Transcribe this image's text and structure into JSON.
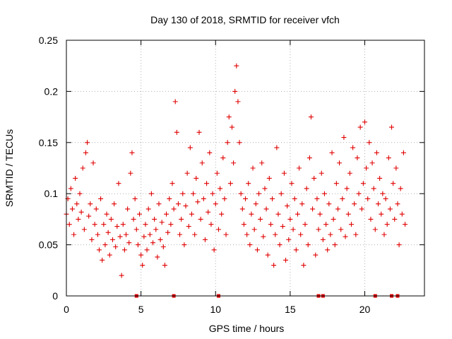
{
  "chart_data": {
    "type": "scatter",
    "title": "Day 130 of 2018, SRMTID for receiver vfch",
    "xlabel": "GPS time / hours",
    "ylabel": "SRMTID / TECUs",
    "xlim": [
      0,
      24
    ],
    "ylim": [
      0,
      0.25
    ],
    "xticks": [
      0,
      5,
      10,
      15,
      20
    ],
    "yticks": [
      0,
      0.05,
      0.1,
      0.15,
      0.2,
      0.25
    ],
    "xtick_labels": [
      "0",
      "5",
      "10",
      "15",
      "20"
    ],
    "ytick_labels": [
      "0",
      "0.05",
      "0.1",
      "0.15",
      "0.2",
      "0.25"
    ],
    "grid": true,
    "marker": "+",
    "color": "#e00000",
    "series": [
      {
        "name": "SRMTID",
        "points": [
          [
            0.0,
            0.08
          ],
          [
            0.1,
            0.095
          ],
          [
            0.2,
            0.07
          ],
          [
            0.3,
            0.105
          ],
          [
            0.4,
            0.085
          ],
          [
            0.5,
            0.06
          ],
          [
            0.6,
            0.115
          ],
          [
            0.7,
            0.09
          ],
          [
            0.8,
            0.075
          ],
          [
            0.9,
            0.1
          ],
          [
            1.0,
            0.082
          ],
          [
            1.1,
            0.125
          ],
          [
            1.2,
            0.065
          ],
          [
            1.3,
            0.14
          ],
          [
            1.4,
            0.15
          ],
          [
            1.5,
            0.078
          ],
          [
            1.6,
            0.09
          ],
          [
            1.7,
            0.055
          ],
          [
            1.8,
            0.13
          ],
          [
            1.9,
            0.07
          ],
          [
            2.0,
            0.085
          ],
          [
            2.1,
            0.06
          ],
          [
            2.2,
            0.045
          ],
          [
            2.3,
            0.095
          ],
          [
            2.4,
            0.035
          ],
          [
            2.5,
            0.07
          ],
          [
            2.6,
            0.05
          ],
          [
            2.7,
            0.08
          ],
          [
            2.8,
            0.062
          ],
          [
            2.9,
            0.04
          ],
          [
            3.0,
            0.075
          ],
          [
            3.1,
            0.055
          ],
          [
            3.2,
            0.09
          ],
          [
            3.3,
            0.048
          ],
          [
            3.4,
            0.068
          ],
          [
            3.5,
            0.11
          ],
          [
            3.6,
            0.058
          ],
          [
            3.7,
            0.02
          ],
          [
            3.8,
            0.07
          ],
          [
            3.9,
            0.045
          ],
          [
            4.0,
            0.06
          ],
          [
            4.1,
            0.085
          ],
          [
            4.2,
            0.052
          ],
          [
            4.3,
            0.12
          ],
          [
            4.4,
            0.14
          ],
          [
            4.5,
            0.075
          ],
          [
            4.6,
            0.095
          ],
          [
            4.7,
            0.065
          ],
          [
            4.8,
            0.05
          ],
          [
            4.9,
            0.08
          ],
          [
            5.0,
            0.04
          ],
          [
            5.1,
            0.03
          ],
          [
            5.2,
            0.058
          ],
          [
            5.3,
            0.07
          ],
          [
            5.4,
            0.045
          ],
          [
            5.5,
            0.085
          ],
          [
            5.6,
            0.06
          ],
          [
            5.7,
            0.1
          ],
          [
            5.8,
            0.052
          ],
          [
            5.9,
            0.075
          ],
          [
            6.0,
            0.065
          ],
          [
            6.1,
            0.038
          ],
          [
            6.2,
            0.09
          ],
          [
            6.3,
            0.055
          ],
          [
            6.4,
            0.072
          ],
          [
            6.5,
            0.048
          ],
          [
            6.6,
            0.03
          ],
          [
            6.7,
            0.08
          ],
          [
            6.8,
            0.062
          ],
          [
            6.9,
            0.095
          ],
          [
            7.0,
            0.07
          ],
          [
            7.1,
            0.11
          ],
          [
            7.2,
            0.085
          ],
          [
            7.3,
            0.19
          ],
          [
            7.4,
            0.16
          ],
          [
            7.5,
            0.09
          ],
          [
            7.6,
            0.06
          ],
          [
            7.7,
            0.075
          ],
          [
            7.8,
            0.1
          ],
          [
            7.9,
            0.05
          ],
          [
            8.0,
            0.088
          ],
          [
            8.1,
            0.12
          ],
          [
            8.2,
            0.068
          ],
          [
            8.3,
            0.145
          ],
          [
            8.4,
            0.08
          ],
          [
            8.5,
            0.1
          ],
          [
            8.6,
            0.06
          ],
          [
            8.7,
            0.115
          ],
          [
            8.8,
            0.092
          ],
          [
            8.9,
            0.16
          ],
          [
            9.0,
            0.075
          ],
          [
            9.1,
            0.13
          ],
          [
            9.2,
            0.095
          ],
          [
            9.3,
            0.055
          ],
          [
            9.4,
            0.11
          ],
          [
            9.5,
            0.082
          ],
          [
            9.6,
            0.14
          ],
          [
            9.7,
            0.07
          ],
          [
            9.8,
            0.1
          ],
          [
            9.9,
            0.045
          ],
          [
            10.0,
            0.09
          ],
          [
            10.1,
            0.12
          ],
          [
            10.2,
            0.065
          ],
          [
            10.3,
            0.105
          ],
          [
            10.4,
            0.08
          ],
          [
            10.5,
            0.135
          ],
          [
            10.6,
            0.095
          ],
          [
            10.7,
            0.06
          ],
          [
            10.8,
            0.15
          ],
          [
            10.9,
            0.175
          ],
          [
            11.0,
            0.11
          ],
          [
            11.1,
            0.165
          ],
          [
            11.2,
            0.13
          ],
          [
            11.3,
            0.2
          ],
          [
            11.4,
            0.225
          ],
          [
            11.5,
            0.19
          ],
          [
            11.6,
            0.15
          ],
          [
            11.7,
            0.1
          ],
          [
            11.8,
            0.085
          ],
          [
            11.9,
            0.07
          ],
          [
            12.0,
            0.095
          ],
          [
            12.1,
            0.06
          ],
          [
            12.2,
            0.11
          ],
          [
            12.3,
            0.05
          ],
          [
            12.4,
            0.08
          ],
          [
            12.5,
            0.125
          ],
          [
            12.6,
            0.065
          ],
          [
            12.7,
            0.09
          ],
          [
            12.8,
            0.045
          ],
          [
            12.9,
            0.1
          ],
          [
            13.0,
            0.075
          ],
          [
            13.1,
            0.13
          ],
          [
            13.2,
            0.058
          ],
          [
            13.3,
            0.105
          ],
          [
            13.4,
            0.085
          ],
          [
            13.5,
            0.04
          ],
          [
            13.6,
            0.115
          ],
          [
            13.7,
            0.07
          ],
          [
            13.8,
            0.095
          ],
          [
            13.9,
            0.03
          ],
          [
            14.0,
            0.06
          ],
          [
            14.1,
            0.145
          ],
          [
            14.2,
            0.08
          ],
          [
            14.3,
            0.05
          ],
          [
            14.4,
            0.1
          ],
          [
            14.5,
            0.068
          ],
          [
            14.6,
            0.12
          ],
          [
            14.7,
            0.035
          ],
          [
            14.8,
            0.088
          ],
          [
            14.9,
            0.055
          ],
          [
            15.0,
            0.075
          ],
          [
            15.1,
            0.11
          ],
          [
            15.2,
            0.065
          ],
          [
            15.3,
            0.095
          ],
          [
            15.4,
            0.045
          ],
          [
            15.5,
            0.08
          ],
          [
            15.6,
            0.125
          ],
          [
            15.7,
            0.06
          ],
          [
            15.8,
            0.09
          ],
          [
            15.9,
            0.03
          ],
          [
            16.0,
            0.07
          ],
          [
            16.1,
            0.105
          ],
          [
            16.2,
            0.05
          ],
          [
            16.3,
            0.135
          ],
          [
            16.4,
            0.175
          ],
          [
            16.5,
            0.085
          ],
          [
            16.6,
            0.115
          ],
          [
            16.7,
            0.04
          ],
          [
            16.8,
            0.095
          ],
          [
            16.9,
            0.065
          ],
          [
            17.0,
            0.08
          ],
          [
            17.1,
            0.12
          ],
          [
            17.2,
            0.055
          ],
          [
            17.3,
            0.1
          ],
          [
            17.4,
            0.07
          ],
          [
            17.5,
            0.045
          ],
          [
            17.6,
            0.09
          ],
          [
            17.7,
            0.06
          ],
          [
            17.8,
            0.14
          ],
          [
            17.9,
            0.075
          ],
          [
            18.0,
            0.05
          ],
          [
            18.1,
            0.11
          ],
          [
            18.2,
            0.085
          ],
          [
            18.3,
            0.13
          ],
          [
            18.4,
            0.065
          ],
          [
            18.5,
            0.095
          ],
          [
            18.6,
            0.155
          ],
          [
            18.7,
            0.058
          ],
          [
            18.8,
            0.105
          ],
          [
            18.9,
            0.08
          ],
          [
            19.0,
            0.12
          ],
          [
            19.1,
            0.07
          ],
          [
            19.2,
            0.145
          ],
          [
            19.3,
            0.09
          ],
          [
            19.4,
            0.06
          ],
          [
            19.5,
            0.135
          ],
          [
            19.6,
            0.1
          ],
          [
            19.7,
            0.165
          ],
          [
            19.8,
            0.085
          ],
          [
            19.9,
            0.11
          ],
          [
            20.0,
            0.17
          ],
          [
            20.1,
            0.125
          ],
          [
            20.2,
            0.095
          ],
          [
            20.3,
            0.15
          ],
          [
            20.4,
            0.075
          ],
          [
            20.5,
            0.13
          ],
          [
            20.6,
            0.105
          ],
          [
            20.7,
            0.065
          ],
          [
            20.8,
            0.14
          ],
          [
            20.9,
            0.09
          ],
          [
            21.0,
            0.115
          ],
          [
            21.1,
            0.08
          ],
          [
            21.2,
            0.1
          ],
          [
            21.3,
            0.06
          ],
          [
            21.4,
            0.095
          ],
          [
            21.5,
            0.07
          ],
          [
            21.6,
            0.135
          ],
          [
            21.7,
            0.085
          ],
          [
            21.8,
            0.165
          ],
          [
            21.9,
            0.11
          ],
          [
            22.0,
            0.075
          ],
          [
            22.1,
            0.125
          ],
          [
            22.2,
            0.09
          ],
          [
            22.3,
            0.05
          ],
          [
            22.4,
            0.105
          ],
          [
            22.5,
            0.08
          ],
          [
            22.6,
            0.14
          ],
          [
            22.7,
            0.07
          ]
        ]
      }
    ],
    "baseline_markers_x": [
      4.7,
      7.2,
      10.2,
      16.9,
      17.2,
      20.7,
      21.8,
      22.2
    ]
  }
}
